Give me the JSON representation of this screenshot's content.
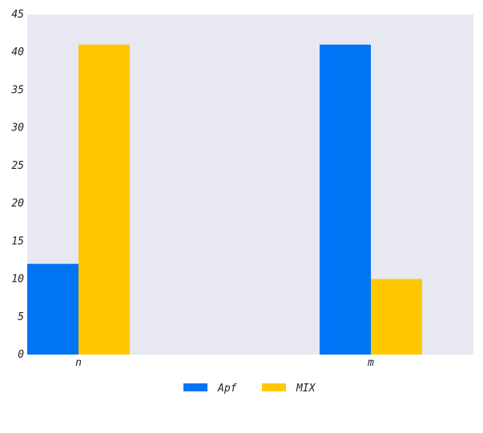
{
  "chart_data": {
    "type": "bar",
    "categories": [
      "n",
      "m"
    ],
    "series": [
      {
        "name": "Apf",
        "values": [
          12,
          41
        ],
        "color": "#0074f5"
      },
      {
        "name": "MIX",
        "values": [
          41,
          10
        ],
        "color": "#ffc800"
      }
    ],
    "ylim": [
      0,
      45
    ],
    "yticks": [
      0,
      5,
      10,
      15,
      20,
      25,
      30,
      35,
      40,
      45
    ],
    "grid": false,
    "legend_position": "bottom-center",
    "plot_background": "#e8e8f2"
  }
}
